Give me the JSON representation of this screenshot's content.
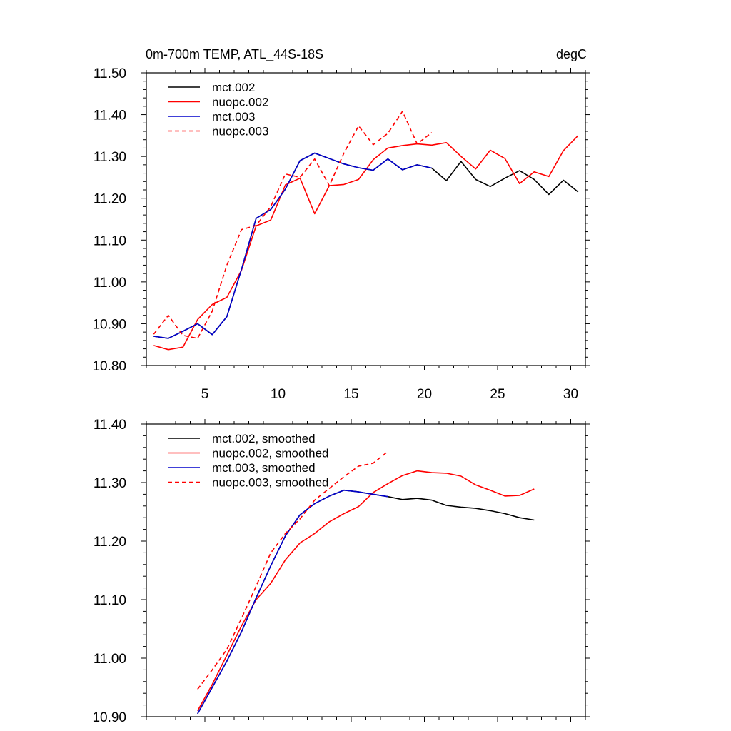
{
  "chart_data": [
    {
      "type": "line",
      "title": "0m-700m TEMP, ATL_44S-18S",
      "units": "degC",
      "xlabel": "",
      "ylabel": "",
      "xlim": [
        1,
        31
      ],
      "ylim": [
        10.8,
        11.5
      ],
      "xticks": [
        5,
        10,
        15,
        20,
        25,
        30
      ],
      "xtick_labels": [
        "5",
        "10",
        "15",
        "20",
        "25",
        "30"
      ],
      "yticks": [
        10.8,
        10.9,
        11.0,
        11.1,
        11.2,
        11.3,
        11.4,
        11.5
      ],
      "ytick_labels": [
        "10.80",
        "10.90",
        "11.00",
        "11.10",
        "11.20",
        "11.30",
        "11.40",
        "11.50"
      ],
      "legend_position": "top-left",
      "series": [
        {
          "name": "mct.002",
          "color": "#000000",
          "dash": "solid",
          "x": [
            1.5,
            2.5,
            3.5,
            4.5,
            5.5,
            6.5,
            7.5,
            8.5,
            9.5,
            10.5,
            11.5,
            12.5,
            13.5,
            14.5,
            15.5,
            16.5,
            17.5,
            18.5,
            19.5,
            20.5,
            21.5,
            22.5,
            23.5,
            24.5,
            25.5,
            26.5,
            27.5,
            28.5,
            29.5,
            30.5
          ],
          "values": [
            10.87,
            10.865,
            10.882,
            10.9,
            10.874,
            10.917,
            11.03,
            11.152,
            11.173,
            11.222,
            11.29,
            11.308,
            11.295,
            11.282,
            11.273,
            11.267,
            11.294,
            11.268,
            11.28,
            11.272,
            11.242,
            11.288,
            11.245,
            11.228,
            11.248,
            11.266,
            11.245,
            11.209,
            11.243,
            11.215
          ]
        },
        {
          "name": "nuopc.002",
          "color": "#ff0000",
          "dash": "solid",
          "x": [
            1.5,
            2.5,
            3.5,
            4.5,
            5.5,
            6.5,
            7.5,
            8.5,
            9.5,
            10.5,
            11.5,
            12.5,
            13.5,
            14.5,
            15.5,
            16.5,
            17.5,
            18.5,
            19.5,
            20.5,
            21.5,
            22.5,
            23.5,
            24.5,
            25.5,
            26.5,
            27.5,
            28.5,
            29.5,
            30.5
          ],
          "values": [
            10.848,
            10.838,
            10.844,
            10.91,
            10.946,
            10.963,
            11.028,
            11.134,
            11.148,
            11.232,
            11.248,
            11.163,
            11.23,
            11.233,
            11.245,
            11.292,
            11.32,
            11.326,
            11.33,
            11.327,
            11.333,
            11.3,
            11.27,
            11.315,
            11.295,
            11.235,
            11.263,
            11.252,
            11.314,
            11.35
          ]
        },
        {
          "name": "mct.003",
          "color": "#0000cc",
          "dash": "solid",
          "x": [
            1.5,
            2.5,
            3.5,
            4.5,
            5.5,
            6.5,
            7.5,
            8.5,
            9.5,
            10.5,
            11.5,
            12.5,
            13.5,
            14.5,
            15.5,
            16.5,
            17.5,
            18.5,
            19.5,
            20.5
          ],
          "values": [
            10.87,
            10.865,
            10.882,
            10.9,
            10.874,
            10.917,
            11.03,
            11.152,
            11.173,
            11.222,
            11.29,
            11.308,
            11.295,
            11.282,
            11.273,
            11.267,
            11.294,
            11.268,
            11.28,
            11.272
          ]
        },
        {
          "name": "nuopc.003",
          "color": "#ff0000",
          "dash": "dashed",
          "x": [
            1.5,
            2.5,
            3.5,
            4.5,
            5.5,
            6.5,
            7.5,
            8.5,
            9.5,
            10.5,
            11.5,
            12.5,
            13.5,
            14.5,
            15.5,
            16.5,
            17.5,
            18.5,
            19.5,
            20.5
          ],
          "values": [
            10.875,
            10.92,
            10.872,
            10.865,
            10.93,
            11.04,
            11.125,
            11.135,
            11.18,
            11.258,
            11.25,
            11.294,
            11.23,
            11.308,
            11.373,
            11.328,
            11.355,
            11.408,
            11.33,
            11.357
          ]
        }
      ]
    },
    {
      "type": "line",
      "title": "",
      "xlabel": "",
      "ylabel": "",
      "xlim": [
        1,
        31
      ],
      "ylim": [
        10.9,
        11.4
      ],
      "xticks": [
        5,
        10,
        15,
        20,
        25,
        30
      ],
      "xtick_labels": [],
      "yticks": [
        10.9,
        11.0,
        11.1,
        11.2,
        11.3,
        11.4
      ],
      "ytick_labels": [
        "10.90",
        "11.00",
        "11.10",
        "11.20",
        "11.30",
        "11.40"
      ],
      "legend_position": "top-left",
      "series": [
        {
          "name": "mct.002, smoothed",
          "color": "#000000",
          "dash": "solid",
          "x": [
            4.5,
            5.5,
            6.5,
            7.5,
            8.5,
            9.5,
            10.5,
            11.5,
            12.5,
            13.5,
            14.5,
            15.5,
            16.5,
            17.5,
            18.5,
            19.5,
            20.5,
            21.5,
            22.5,
            23.5,
            24.5,
            25.5,
            26.5,
            27.5
          ],
          "values": [
            10.905,
            10.95,
            10.995,
            11.045,
            11.103,
            11.158,
            11.209,
            11.245,
            11.264,
            11.277,
            11.287,
            11.284,
            11.28,
            11.276,
            11.271,
            11.273,
            11.27,
            11.261,
            11.258,
            11.256,
            11.252,
            11.247,
            11.24,
            11.236
          ]
        },
        {
          "name": "nuopc.002, smoothed",
          "color": "#ff0000",
          "dash": "solid",
          "x": [
            4.5,
            5.5,
            6.5,
            7.5,
            8.5,
            9.5,
            10.5,
            11.5,
            12.5,
            13.5,
            14.5,
            15.5,
            16.5,
            17.5,
            18.5,
            19.5,
            20.5,
            21.5,
            22.5,
            23.5,
            24.5,
            25.5,
            26.5,
            27.5
          ],
          "values": [
            10.91,
            10.955,
            11.005,
            11.055,
            11.1,
            11.128,
            11.168,
            11.197,
            11.213,
            11.233,
            11.247,
            11.259,
            11.283,
            11.298,
            11.312,
            11.32,
            11.317,
            11.316,
            11.311,
            11.296,
            11.287,
            11.277,
            11.278,
            11.289
          ]
        },
        {
          "name": "mct.003, smoothed",
          "color": "#0000cc",
          "dash": "solid",
          "x": [
            4.5,
            5.5,
            6.5,
            7.5,
            8.5,
            9.5,
            10.5,
            11.5,
            12.5,
            13.5,
            14.5,
            15.5,
            16.5,
            17.5
          ],
          "values": [
            10.905,
            10.95,
            10.995,
            11.045,
            11.103,
            11.158,
            11.209,
            11.245,
            11.264,
            11.277,
            11.287,
            11.284,
            11.28,
            11.276
          ]
        },
        {
          "name": "nuopc.003, smoothed",
          "color": "#ff0000",
          "dash": "dashed",
          "x": [
            4.5,
            5.5,
            6.5,
            7.5,
            8.5,
            9.5,
            10.5,
            11.5,
            12.5,
            13.5,
            14.5,
            15.5,
            16.5,
            17.5
          ],
          "values": [
            10.947,
            10.98,
            11.015,
            11.068,
            11.123,
            11.18,
            11.213,
            11.238,
            11.27,
            11.29,
            11.31,
            11.328,
            11.333,
            11.353
          ]
        }
      ]
    }
  ]
}
